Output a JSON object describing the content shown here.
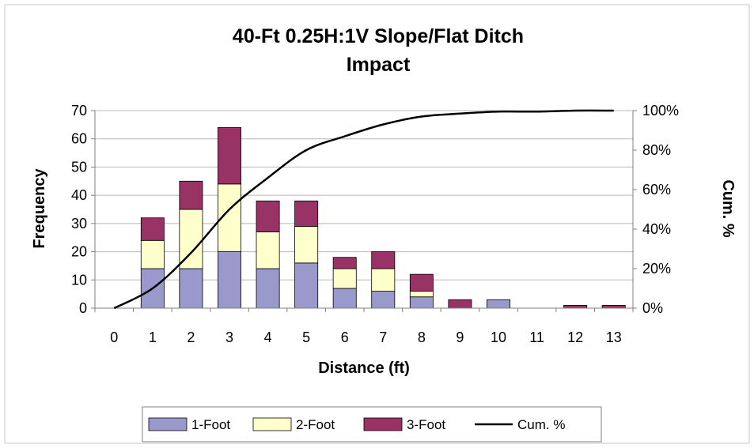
{
  "chart_data": {
    "type": "bar",
    "stacked": true,
    "title": "40-Ft 0.25H:1V Slope/Flat Ditch",
    "subtitle": "Impact",
    "xlabel": "Distance (ft)",
    "ylabel": "Frequency",
    "y2label": "Cum. %",
    "categories": [
      "0",
      "1",
      "2",
      "3",
      "4",
      "5",
      "6",
      "7",
      "8",
      "9",
      "10",
      "11",
      "12",
      "13"
    ],
    "ylim": [
      0,
      70
    ],
    "yticks": [
      "0",
      "10",
      "20",
      "30",
      "40",
      "50",
      "60",
      "70"
    ],
    "y2lim": [
      0,
      100
    ],
    "y2ticks": [
      "0%",
      "20%",
      "40%",
      "60%",
      "80%",
      "100%"
    ],
    "grid": true,
    "legend_position": "bottom",
    "series": [
      {
        "name": "1-Foot",
        "kind": "bar",
        "color": "#9999cc",
        "values": [
          0,
          14,
          14,
          20,
          14,
          16,
          7,
          6,
          4,
          0,
          3,
          0,
          0,
          0
        ]
      },
      {
        "name": "2-Foot",
        "kind": "bar",
        "color": "#ffffcc",
        "values": [
          0,
          10,
          21,
          24,
          13,
          13,
          7,
          8,
          2,
          0,
          0,
          0,
          0,
          0
        ]
      },
      {
        "name": "3-Foot",
        "kind": "bar",
        "color": "#993366",
        "values": [
          0,
          8,
          10,
          20,
          11,
          9,
          4,
          6,
          6,
          3,
          0,
          0,
          1,
          1
        ]
      },
      {
        "name": "Cum. %",
        "kind": "line",
        "axis": "right",
        "color": "#000000",
        "values": [
          0,
          10,
          28,
          50,
          66,
          80,
          87,
          93,
          97,
          98.5,
          99.5,
          99.5,
          100,
          100
        ]
      }
    ]
  }
}
